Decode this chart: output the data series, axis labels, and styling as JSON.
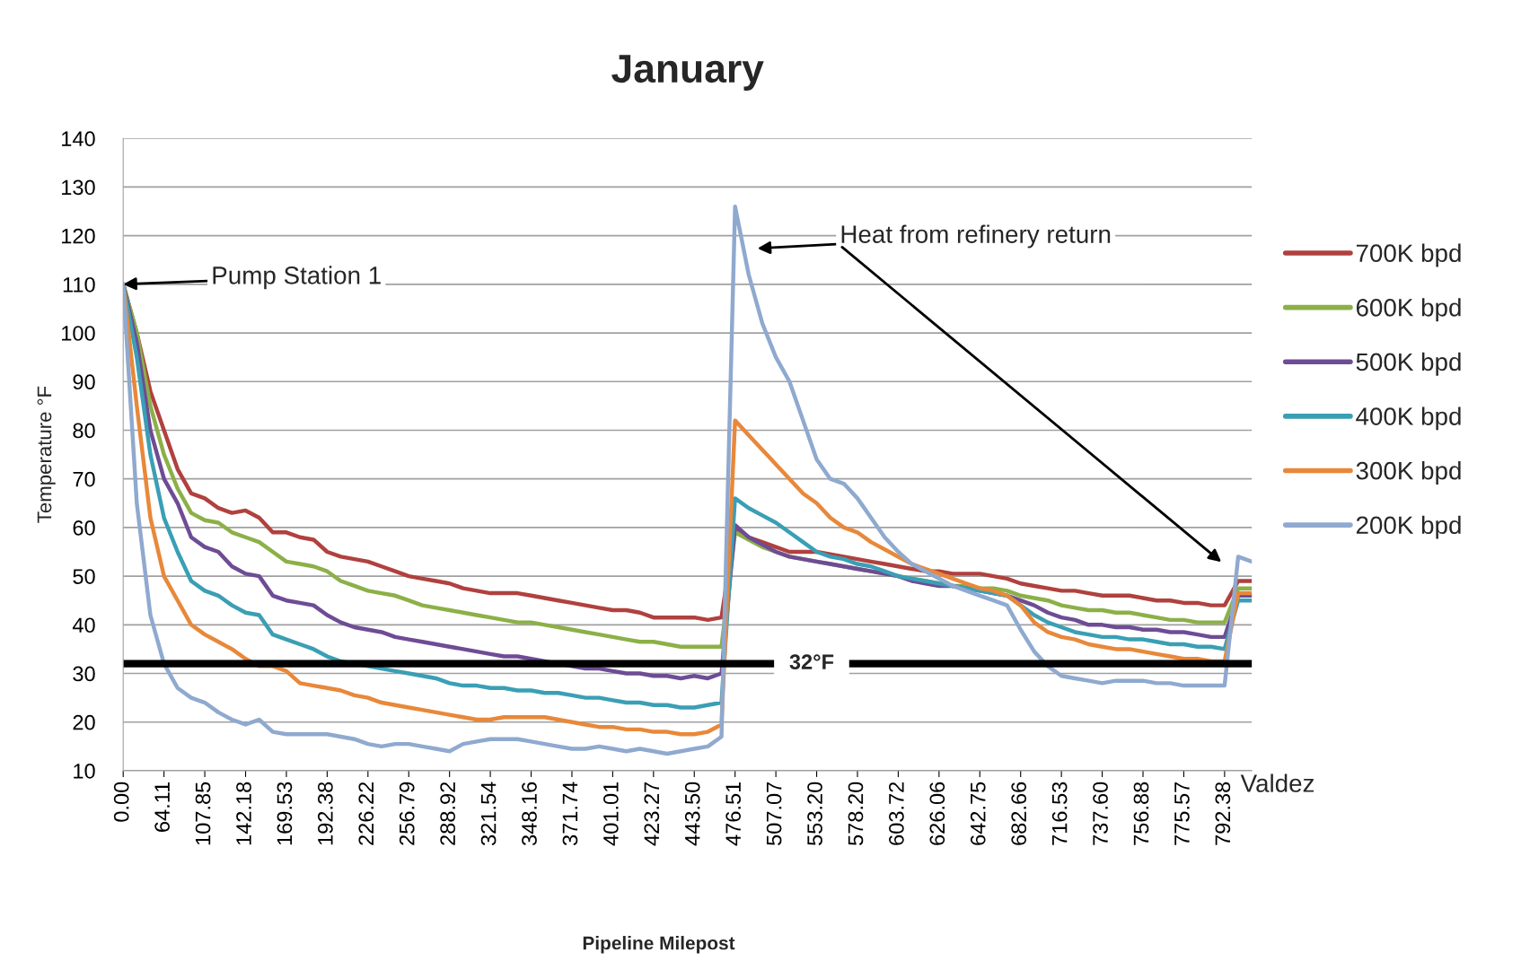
{
  "chart_data": {
    "type": "line",
    "title": "January",
    "xlabel": "Pipeline Milepost",
    "ylabel": "Temperature °F",
    "categories": [
      "0.00",
      null,
      null,
      "64.11",
      null,
      null,
      "107.85",
      null,
      null,
      "142.18",
      null,
      null,
      "169.53",
      null,
      null,
      "192.38",
      null,
      null,
      "226.22",
      null,
      null,
      "256.79",
      null,
      null,
      "288.92",
      null,
      null,
      "321.54",
      null,
      null,
      "348.16",
      null,
      null,
      "371.74",
      null,
      null,
      "401.01",
      null,
      null,
      "423.27",
      null,
      null,
      "443.50",
      null,
      null,
      "476.51",
      null,
      null,
      "507.07",
      null,
      null,
      "553.20",
      null,
      null,
      "578.20",
      null,
      null,
      "603.72",
      null,
      null,
      "626.06",
      null,
      null,
      "642.75",
      null,
      null,
      "682.66",
      null,
      null,
      "716.53",
      null,
      null,
      "737.60",
      null,
      null,
      "756.88",
      null,
      null,
      "775.57",
      null,
      null,
      "792.38",
      null,
      null
    ],
    "series": [
      {
        "name": "700K bpd",
        "color": "#b0413e",
        "values": [
          110,
          100,
          88,
          80,
          72,
          67,
          66,
          64,
          63,
          63.5,
          62,
          59,
          59,
          58,
          57.5,
          55,
          54,
          53.5,
          53,
          52,
          51,
          50,
          49.5,
          49,
          48.5,
          47.5,
          47,
          46.5,
          46.5,
          46.5,
          46,
          45.5,
          45,
          44.5,
          44,
          43.5,
          43,
          43,
          42.5,
          41.5,
          41.5,
          41.5,
          41.5,
          41,
          41.5,
          60,
          58,
          57,
          56,
          55,
          55,
          55,
          54.5,
          54,
          53.5,
          53,
          52.5,
          52,
          51.5,
          51,
          51,
          50.5,
          50.5,
          50.5,
          50,
          49.5,
          48.5,
          48,
          47.5,
          47,
          47,
          46.5,
          46,
          46,
          46,
          45.5,
          45,
          45,
          44.5,
          44.5,
          44,
          44,
          49,
          49
        ]
      },
      {
        "name": "600K bpd",
        "color": "#8cb048",
        "values": [
          110,
          100,
          85,
          75,
          68,
          63,
          61.5,
          61,
          59,
          58,
          57,
          55,
          53,
          52.5,
          52,
          51,
          49,
          48,
          47,
          46.5,
          46,
          45,
          44,
          43.5,
          43,
          42.5,
          42,
          41.5,
          41,
          40.5,
          40.5,
          40,
          39.5,
          39,
          38.5,
          38,
          37.5,
          37,
          36.5,
          36.5,
          36,
          35.5,
          35.5,
          35.5,
          35.5,
          59,
          57.5,
          56,
          55,
          54,
          53.5,
          53,
          52.5,
          52,
          51.5,
          51,
          50.5,
          50,
          49.5,
          49,
          48.5,
          48,
          48,
          47.5,
          47.5,
          47,
          46,
          45.5,
          45,
          44,
          43.5,
          43,
          43,
          42.5,
          42.5,
          42,
          41.5,
          41,
          41,
          40.5,
          40.5,
          40.5,
          47.5,
          47.5
        ]
      },
      {
        "name": "500K bpd",
        "color": "#6e4c95",
        "values": [
          110,
          98,
          80,
          70,
          65,
          58,
          56,
          55,
          52,
          50.5,
          50,
          46,
          45,
          44.5,
          44,
          42,
          40.5,
          39.5,
          39,
          38.5,
          37.5,
          37,
          36.5,
          36,
          35.5,
          35,
          34.5,
          34,
          33.5,
          33.5,
          33,
          32.5,
          32,
          31.5,
          31,
          31,
          30.5,
          30,
          30,
          29.5,
          29.5,
          29,
          29.5,
          29,
          30,
          60.5,
          58,
          56.5,
          55,
          54,
          53.5,
          53,
          52.5,
          52,
          51.5,
          51,
          50.5,
          50,
          49,
          48.5,
          48,
          48,
          47.5,
          47,
          46.5,
          46,
          45,
          44,
          42.5,
          41.5,
          41,
          40,
          40,
          39.5,
          39.5,
          39,
          39,
          38.5,
          38.5,
          38,
          37.5,
          37.5,
          46,
          46
        ]
      },
      {
        "name": "400K bpd",
        "color": "#3a9fb5",
        "values": [
          110,
          95,
          75,
          62,
          55,
          49,
          47,
          46,
          44,
          42.5,
          42,
          38,
          37,
          36,
          35,
          33.5,
          32.5,
          32,
          31.5,
          31,
          30.5,
          30,
          29.5,
          29,
          28,
          27.5,
          27.5,
          27,
          27,
          26.5,
          26.5,
          26,
          26,
          25.5,
          25,
          25,
          24.5,
          24,
          24,
          23.5,
          23.5,
          23,
          23,
          23.5,
          24,
          66,
          64,
          62.5,
          61,
          59,
          57,
          55,
          54,
          53.5,
          52.5,
          52,
          51,
          50,
          49.5,
          49,
          48.5,
          48,
          47.5,
          47,
          46.5,
          46,
          44,
          42,
          40.5,
          39.5,
          38.5,
          38,
          37.5,
          37.5,
          37,
          37,
          36.5,
          36,
          36,
          35.5,
          35.5,
          35,
          45,
          45
        ]
      },
      {
        "name": "300K bpd",
        "color": "#e8883a",
        "values": [
          110,
          85,
          62,
          50,
          45,
          40,
          38,
          36.5,
          35,
          33,
          31.5,
          31.5,
          30.5,
          28,
          27.5,
          27,
          26.5,
          25.5,
          25,
          24,
          23.5,
          23,
          22.5,
          22,
          21.5,
          21,
          20.5,
          20.5,
          21,
          21,
          21,
          21,
          20.5,
          20,
          19.5,
          19,
          19,
          18.5,
          18.5,
          18,
          18,
          17.5,
          17.5,
          18,
          19.5,
          82,
          79,
          76,
          73,
          70,
          67,
          65,
          62,
          60,
          59,
          57,
          55.5,
          54,
          52.5,
          51.5,
          50.5,
          49.5,
          48.5,
          47.5,
          47,
          46,
          44,
          40.5,
          38.5,
          37.5,
          37,
          36,
          35.5,
          35,
          35,
          34.5,
          34,
          33.5,
          33,
          33,
          32.5,
          32.5,
          46.5,
          46.5
        ]
      },
      {
        "name": "200K bpd",
        "color": "#8fa9cf",
        "values": [
          110,
          65,
          42,
          32,
          27,
          25,
          24,
          22,
          20.5,
          19.5,
          20.5,
          18,
          17.5,
          17.5,
          17.5,
          17.5,
          17,
          16.5,
          15.5,
          15,
          15.5,
          15.5,
          15,
          14.5,
          14,
          15.5,
          16,
          16.5,
          16.5,
          16.5,
          16,
          15.5,
          15,
          14.5,
          14.5,
          15,
          14.5,
          14,
          14.5,
          14,
          13.5,
          14,
          14.5,
          15,
          17,
          126,
          112,
          102,
          95,
          90,
          82,
          74,
          70,
          69,
          66,
          62,
          58,
          55,
          52.5,
          51,
          49.5,
          48,
          47,
          46,
          45,
          44,
          39,
          34.5,
          31.5,
          29.5,
          29,
          28.5,
          28,
          28.5,
          28.5,
          28.5,
          28,
          28,
          27.5,
          27.5,
          27.5,
          27.5,
          54,
          53
        ]
      }
    ],
    "ylim": [
      10,
      140
    ],
    "yticks": [
      10,
      20,
      30,
      40,
      50,
      60,
      70,
      80,
      90,
      100,
      110,
      120,
      130,
      140
    ],
    "grid": "y",
    "legend": "right",
    "ref_lines": [
      {
        "axis": "y",
        "value": 32,
        "label": "32°F",
        "color": "#000000"
      }
    ],
    "annotations": [
      {
        "text": "Pump Station 1",
        "x": "0.00",
        "y": 110
      },
      "Heat from refinery return",
      "Valdez"
    ]
  }
}
